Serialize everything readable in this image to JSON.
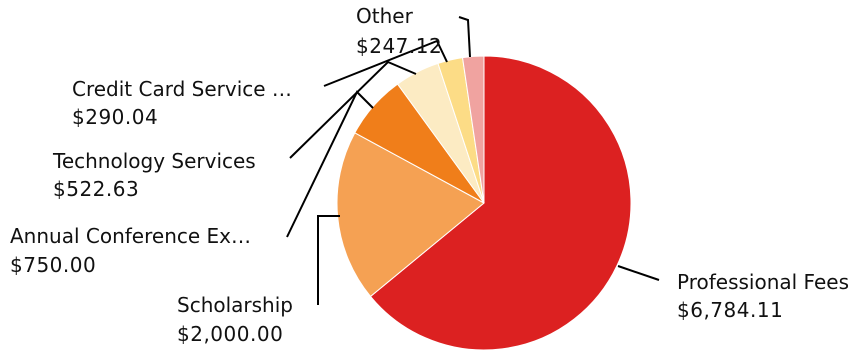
{
  "chart_data": {
    "type": "pie",
    "title": "",
    "slices": [
      {
        "name": "Professional Fees",
        "value": 6784.11,
        "display": "$6,784.11",
        "color": "#dc2121"
      },
      {
        "name": "Scholarship",
        "value": 2000.0,
        "display": "$2,000.00",
        "color": "#f5a153"
      },
      {
        "name": "Annual Conference Ex…",
        "value": 750.0,
        "display": "$750.00",
        "color": "#f07e1a"
      },
      {
        "name": "Technology Services",
        "value": 522.63,
        "display": "$522.63",
        "color": "#fcebc3"
      },
      {
        "name": "Credit Card Service …",
        "value": 290.04,
        "display": "$290.04",
        "color": "#fcdc86"
      },
      {
        "name": "Other",
        "value": 247.12,
        "display": "$247.12",
        "color": "#f0a3a0"
      }
    ],
    "legend": "none",
    "labels": "outside-with-leader-lines"
  }
}
